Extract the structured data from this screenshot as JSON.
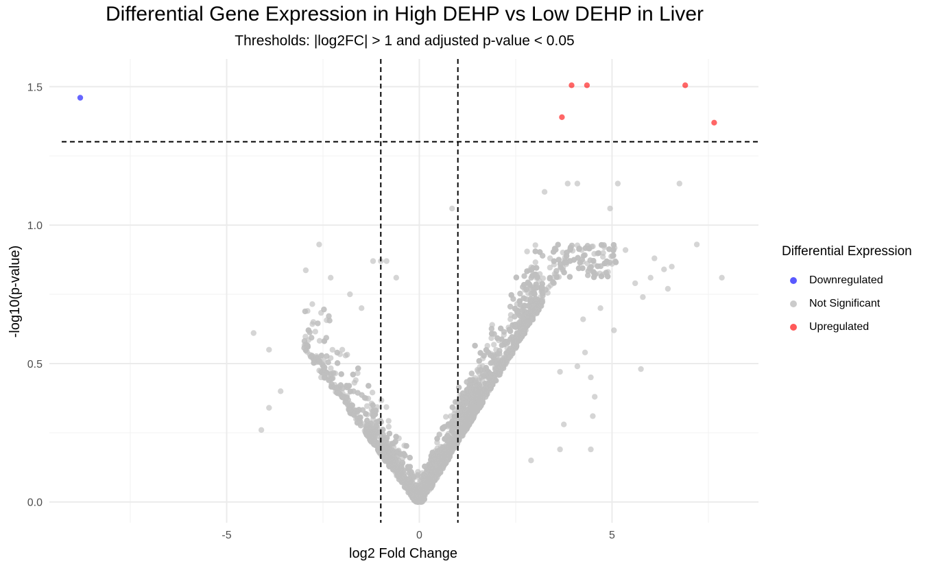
{
  "chart_data": {
    "type": "scatter",
    "title": "Differential Gene Expression in High DEHP vs Low DEHP in Liver",
    "subtitle": "Thresholds: |log2FC| > 1 and adjusted p-value < 0.05",
    "xlabel": "log2 Fold Change",
    "ylabel": "-log10(p-value)",
    "xlim": [
      -9.6,
      8.8
    ],
    "ylim": [
      -0.075,
      1.6
    ],
    "x_ticks": [
      -5,
      0,
      5
    ],
    "x_tick_labels": [
      "-5",
      "0",
      "5"
    ],
    "y_ticks": [
      0.0,
      0.5,
      1.0,
      1.5
    ],
    "y_tick_labels": [
      "0.0",
      "0.5",
      "1.0",
      "1.5"
    ],
    "grid": true,
    "thresholds": {
      "log2fc": [
        -1,
        1
      ],
      "neg_log10_p": 1.301
    },
    "legend": {
      "title": "Differential Expression",
      "position": "right",
      "entries": [
        "Downregulated",
        "Not Significant",
        "Upregulated"
      ]
    },
    "colors": {
      "Downregulated": "#0000ff",
      "Not Significant": "#bebebe",
      "Upregulated": "#ff0000"
    },
    "series": [
      {
        "name": "Downregulated",
        "points": [
          [
            -8.8,
            1.46
          ]
        ]
      },
      {
        "name": "Upregulated",
        "points": [
          [
            3.95,
            1.505
          ],
          [
            4.35,
            1.505
          ],
          [
            6.9,
            1.505
          ],
          [
            3.7,
            1.39
          ],
          [
            7.65,
            1.37
          ]
        ]
      },
      {
        "name": "Not Significant",
        "points": [
          [
            3.25,
            1.12
          ],
          [
            3.85,
            1.15
          ],
          [
            4.1,
            1.15
          ],
          [
            5.15,
            1.15
          ],
          [
            6.75,
            1.15
          ],
          [
            0.85,
            1.06
          ],
          [
            4.95,
            1.06
          ],
          [
            -2.6,
            0.93
          ],
          [
            7.2,
            0.93
          ],
          [
            6.1,
            0.88
          ],
          [
            6.55,
            0.85
          ],
          [
            7.85,
            0.81
          ],
          [
            -2.3,
            0.81
          ],
          [
            -1.8,
            0.75
          ],
          [
            -1.2,
            0.87
          ],
          [
            -1.0,
            0.87
          ],
          [
            -0.85,
            0.87
          ],
          [
            -4.3,
            0.61
          ],
          [
            -3.9,
            0.55
          ],
          [
            -2.9,
            0.69
          ],
          [
            -2.75,
            0.65
          ],
          [
            -2.55,
            0.45
          ],
          [
            -3.6,
            0.4
          ],
          [
            -3.9,
            0.34
          ],
          [
            -4.1,
            0.26
          ],
          [
            4.3,
            0.54
          ],
          [
            5.05,
            0.62
          ],
          [
            3.65,
            0.47
          ],
          [
            4.1,
            0.49
          ],
          [
            5.75,
            0.48
          ],
          [
            4.55,
            0.38
          ],
          [
            4.5,
            0.31
          ],
          [
            3.75,
            0.28
          ],
          [
            3.65,
            0.19
          ],
          [
            4.45,
            0.45
          ],
          [
            4.45,
            0.19
          ],
          [
            2.9,
            0.15
          ],
          [
            5.0,
            0.86
          ],
          [
            5.35,
            0.91
          ],
          [
            4.8,
            0.92
          ],
          [
            6.35,
            0.84
          ],
          [
            6.45,
            0.77
          ],
          [
            5.6,
            0.79
          ],
          [
            5.8,
            0.74
          ],
          [
            6.0,
            0.81
          ],
          [
            4.7,
            0.7
          ],
          [
            4.25,
            0.66
          ],
          [
            -1.5,
            0.7
          ],
          [
            -2.0,
            0.55
          ],
          [
            -1.65,
            0.44
          ],
          [
            -2.3,
            0.52
          ],
          [
            -0.6,
            0.81
          ]
        ]
      }
    ]
  }
}
